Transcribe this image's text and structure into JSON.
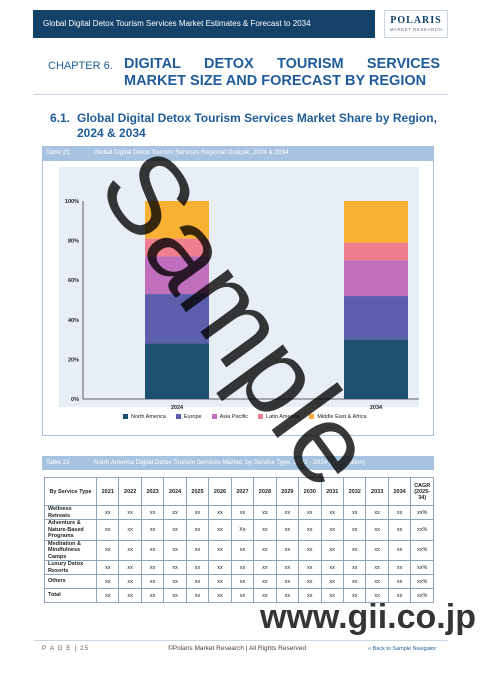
{
  "header": {
    "title": "Global Digital Detox Tourism Services Market Estimates & Forecast to 2034",
    "logo_brand": "POLARIS",
    "logo_tagline": "MARKET RESEARCH"
  },
  "chapter": {
    "label": "CHAPTER 6.",
    "title": "DIGITAL DETOX TOURISM SERVICES MARKET SIZE AND FORECAST BY REGION"
  },
  "section": {
    "number": "6.1.",
    "title": "Global Digital Detox Tourism Services Market Share by Region, 2024 & 2034"
  },
  "table21": {
    "number": "Table 21",
    "title": "Global Digital Detox Tourism Services Regional Outlook, 2024 & 2034"
  },
  "chart_data": {
    "type": "bar",
    "stacked": true,
    "categories": [
      "2024",
      "2034"
    ],
    "series": [
      {
        "name": "North America",
        "values": [
          28,
          30
        ]
      },
      {
        "name": "Europe",
        "values": [
          25,
          22
        ]
      },
      {
        "name": "Asia Pacific",
        "values": [
          19,
          18
        ]
      },
      {
        "name": "Latin America",
        "values": [
          9,
          9
        ]
      },
      {
        "name": "Middle East & Africa",
        "values": [
          19,
          21
        ]
      }
    ],
    "colors": [
      "#1d4f6e",
      "#5b5eaa",
      "#c06fbd",
      "#ef7f8f",
      "#f8b133"
    ],
    "yticks": [
      "0%",
      "20%",
      "40%",
      "60%",
      "80%",
      "100%"
    ],
    "ylim": [
      0,
      100
    ],
    "grid": false,
    "legend": "bottom"
  },
  "table22": {
    "number": "Table 22",
    "title": "North America Digital Detox Tourism Services Market, by Service Type, 2021 - 2034 (USD Billion)",
    "header_first": "By Service Type",
    "years": [
      "2021",
      "2022",
      "2023",
      "2024",
      "2025",
      "2026",
      "2027",
      "2028",
      "2029",
      "2030",
      "2031",
      "2032",
      "2033",
      "2034"
    ],
    "header_cagr": "CAGR (2025-34)",
    "rows": [
      {
        "label": "Wellness Retreats",
        "cells": [
          "xx",
          "xx",
          "xx",
          "xx",
          "xx",
          "xx",
          "xx",
          "xx",
          "xx",
          "xx",
          "xx",
          "xx",
          "xx",
          "xx"
        ],
        "cagr": "xx%"
      },
      {
        "label": "Adventure & Nature-Based Programs",
        "cells": [
          "xx",
          "xx",
          "xx",
          "xx",
          "xx",
          "xx",
          "Xx",
          "xx",
          "xx",
          "xx",
          "xx",
          "xx",
          "xx",
          "xx"
        ],
        "cagr": "xx%"
      },
      {
        "label": "Meditation & Mindfulness Camps",
        "cells": [
          "xx",
          "xx",
          "xx",
          "xx",
          "xx",
          "xx",
          "xx",
          "xx",
          "xx",
          "xx",
          "xx",
          "xx",
          "xx",
          "xx"
        ],
        "cagr": "xx%"
      },
      {
        "label": "Luxury Detox Resorts",
        "cells": [
          "xx",
          "xx",
          "xx",
          "xx",
          "xx",
          "xx",
          "xx",
          "xx",
          "xx",
          "xx",
          "xx",
          "xx",
          "xx",
          "xx"
        ],
        "cagr": "xx%"
      },
      {
        "label": "Others",
        "cells": [
          "xx",
          "xx",
          "xx",
          "xx",
          "xx",
          "xx",
          "xx",
          "xx",
          "xx",
          "xx",
          "xx",
          "xx",
          "xx",
          "xx"
        ],
        "cagr": "xx%"
      },
      {
        "label": "Total",
        "cells": [
          "xx",
          "xx",
          "xx",
          "xx",
          "xx",
          "xx",
          "xx",
          "xx",
          "xx",
          "xx",
          "xx",
          "xx",
          "xx",
          "xx"
        ],
        "cagr": "xx%"
      }
    ]
  },
  "footer": {
    "page_label": "P A G E | 25",
    "copyright": "©Polaris Market Research | All Rights Reserved",
    "nav_link": "« Back to Sample Navigator"
  },
  "watermark": {
    "sample": "Sample",
    "site": "www.gii.co.jp"
  }
}
